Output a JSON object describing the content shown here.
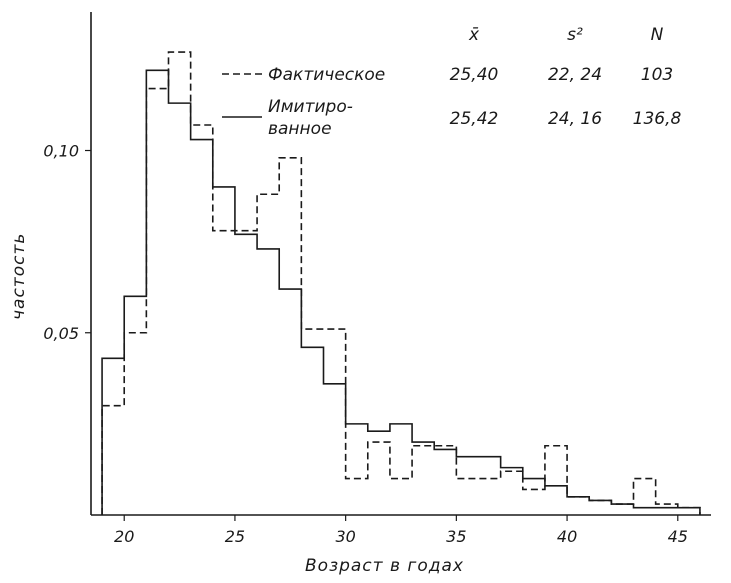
{
  "chart_data": {
    "type": "histogram",
    "xlabel": "Возраст в годах",
    "ylabel": "частость",
    "xlim": [
      18.5,
      46.5
    ],
    "ylim": [
      0,
      0.138
    ],
    "x_ticks": [
      "20",
      "25",
      "30",
      "35",
      "40",
      "45"
    ],
    "y_ticks": [
      "0,05",
      "0,10"
    ],
    "bins": [
      19,
      20,
      21,
      22,
      23,
      24,
      25,
      26,
      27,
      28,
      29,
      30,
      31,
      32,
      33,
      34,
      35,
      36,
      37,
      38,
      39,
      40,
      41,
      42,
      43,
      44,
      45
    ],
    "series": [
      {
        "name": "Фактическое",
        "style": "dashed",
        "values": [
          0.03,
          0.05,
          0.117,
          0.127,
          0.107,
          0.078,
          0.078,
          0.088,
          0.098,
          0.051,
          0.051,
          0.01,
          0.02,
          0.01,
          0.019,
          0.019,
          0.01,
          0.01,
          0.012,
          0.007,
          0.019,
          0.005,
          0.004,
          0.003,
          0.01,
          0.003,
          0.002
        ]
      },
      {
        "name": "Имитиро-ванное",
        "style": "solid",
        "values": [
          0.043,
          0.06,
          0.122,
          0.113,
          0.103,
          0.09,
          0.077,
          0.073,
          0.062,
          0.046,
          0.036,
          0.025,
          0.023,
          0.025,
          0.02,
          0.018,
          0.016,
          0.016,
          0.013,
          0.01,
          0.008,
          0.005,
          0.004,
          0.003,
          0.002,
          0.002,
          0.002
        ]
      }
    ],
    "stats_headers": [
      "x̄",
      "s²",
      "N"
    ],
    "stats": [
      {
        "label": "Фактическое",
        "mean": "25,40",
        "var": "22, 24",
        "n": "103"
      },
      {
        "label_lines": [
          "Имитиро-",
          "ванное"
        ],
        "mean": "25,42",
        "var": "24, 16",
        "n": "136,8"
      }
    ],
    "grid": false,
    "legend": "top-right"
  }
}
